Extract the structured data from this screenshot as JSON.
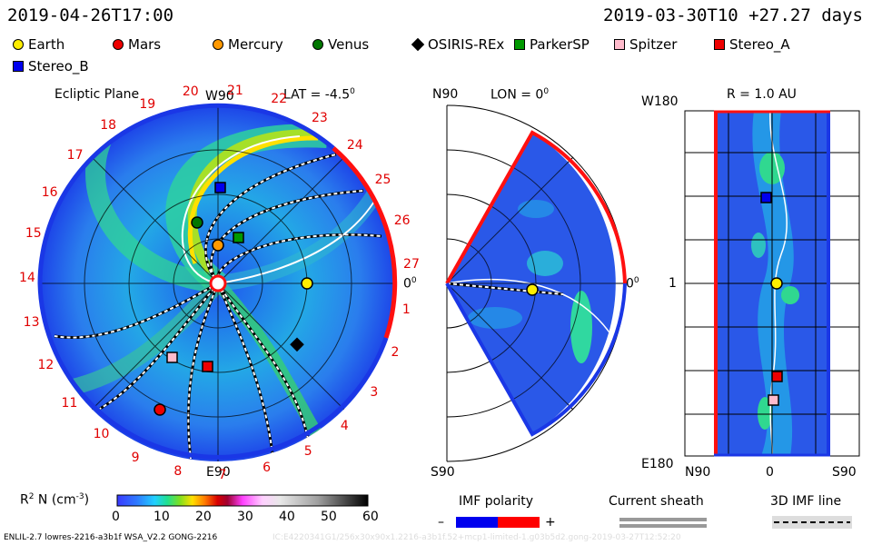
{
  "header": {
    "left_time": "2019-04-26T17:00",
    "right_time": "2019-03-30T10 +27.27 days"
  },
  "legend": [
    {
      "name": "Earth",
      "shape": "circle",
      "color": "#ffee00"
    },
    {
      "name": "Mars",
      "shape": "circle",
      "color": "#ee0000"
    },
    {
      "name": "Mercury",
      "shape": "circle",
      "color": "#ff9900"
    },
    {
      "name": "Venus",
      "shape": "circle",
      "color": "#007700"
    },
    {
      "name": "OSIRIS-REx",
      "shape": "diamond",
      "color": "#000000"
    },
    {
      "name": "ParkerSP",
      "shape": "square",
      "color": "#009900"
    },
    {
      "name": "Spitzer",
      "shape": "square",
      "color": "#ffbbcc"
    },
    {
      "name": "Stereo_A",
      "shape": "square",
      "color": "#ee0000"
    },
    {
      "name": "Stereo_B",
      "shape": "square",
      "color": "#0000ee"
    }
  ],
  "ecliptic": {
    "title": "Ecliptic Plane",
    "top_label": "W90",
    "lat_label": "LAT = -4.5",
    "deg_mark": "0",
    "bottom_label": "E90",
    "right_label": "0",
    "carrington_ticks": [
      "1",
      "2",
      "3",
      "4",
      "5",
      "6",
      "7",
      "8",
      "9",
      "10",
      "11",
      "12",
      "13",
      "14",
      "15",
      "16",
      "17",
      "18",
      "19",
      "20",
      "21",
      "22",
      "23",
      "24",
      "25",
      "26",
      "27"
    ]
  },
  "meridional": {
    "top_label": "N90",
    "lon_label": "LON = 0",
    "deg_mark": "0",
    "bottom_label": "S90",
    "right_label": "0"
  },
  "radial": {
    "title": "R = 1.0 AU",
    "top_left": "W180",
    "mid_left": "1",
    "bottom_left": "E180",
    "bottom_ticks": [
      "N90",
      "0",
      "S90"
    ]
  },
  "colorbar": {
    "label_main": "R",
    "label_sup": "2",
    "label_rest": " N (cm",
    "label_exp": "-3",
    "label_close": ")",
    "ticks": [
      "0",
      "10",
      "20",
      "30",
      "40",
      "50",
      "60"
    ]
  },
  "imf_polarity": {
    "title": "IMF polarity",
    "minus": "–",
    "plus": "+"
  },
  "current_sheath": {
    "title": "Current sheath"
  },
  "imf_line": {
    "title": "3D IMF line"
  },
  "footer": {
    "text": "ENLIL-2.7 lowres-2216-a3b1f WSA_V2.2 GONG-2216",
    "faint": "IC:E4220341G1/256x30x90x1.2216-a3b1f.52+mcp1-limited-1.g03b5d2.gong-2019-03-27T12:52:20"
  },
  "colors": {
    "boundary_blue": "#1a37e6",
    "boundary_red": "#ff1010"
  }
}
